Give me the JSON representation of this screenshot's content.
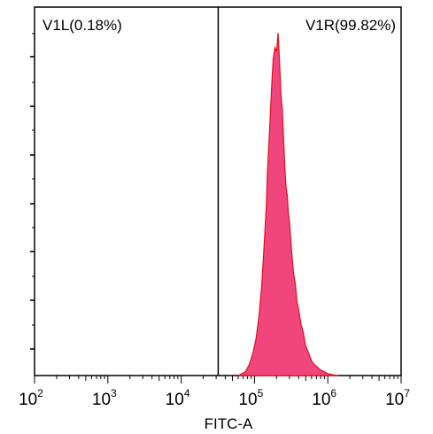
{
  "chart_data": {
    "type": "area",
    "title": "",
    "xlabel": "FITC-A",
    "ylabel": "",
    "x_scale": "log",
    "xlim": [
      100,
      10000000
    ],
    "x_ticks": [
      {
        "value": 100,
        "base": "10",
        "exp": "2"
      },
      {
        "value": 1000,
        "base": "10",
        "exp": "3"
      },
      {
        "value": 10000,
        "base": "10",
        "exp": "4"
      },
      {
        "value": 100000,
        "base": "10",
        "exp": "5"
      },
      {
        "value": 1000000,
        "base": "10",
        "exp": "6"
      },
      {
        "value": 10000000,
        "base": "10",
        "exp": "7"
      }
    ],
    "ylim": [
      0,
      100
    ],
    "grid": false,
    "gate_x": 32000,
    "gates": [
      {
        "label": "V1L(0.18%)",
        "side": "left"
      },
      {
        "label": "V1R(99.82%)",
        "side": "right"
      }
    ],
    "fill_color": "#f0457d",
    "stroke_color": "#e0141a",
    "x": [
      60000,
      75000,
      85000,
      95000,
      105000,
      115000,
      125000,
      135000,
      145000,
      150000,
      160000,
      170000,
      180000,
      190000,
      200000,
      210000,
      220000,
      230000,
      240000,
      250000,
      260000,
      270000,
      280000,
      290000,
      300000,
      320000,
      340000,
      360000,
      380000,
      400000,
      430000,
      460000,
      500000,
      550000,
      600000,
      650000,
      700000,
      750000,
      800000,
      900000,
      1000000,
      1200000,
      1400000
    ],
    "values": [
      0,
      1,
      3,
      6,
      10,
      16,
      24,
      35,
      46,
      55,
      66,
      77,
      86,
      89,
      88,
      93,
      85,
      76,
      72,
      64,
      56,
      51,
      49,
      44,
      42,
      34,
      28,
      25,
      20,
      18,
      14,
      12,
      8,
      6,
      4,
      3,
      2.5,
      2,
      1.5,
      1,
      0.5,
      0.2,
      0
    ]
  }
}
